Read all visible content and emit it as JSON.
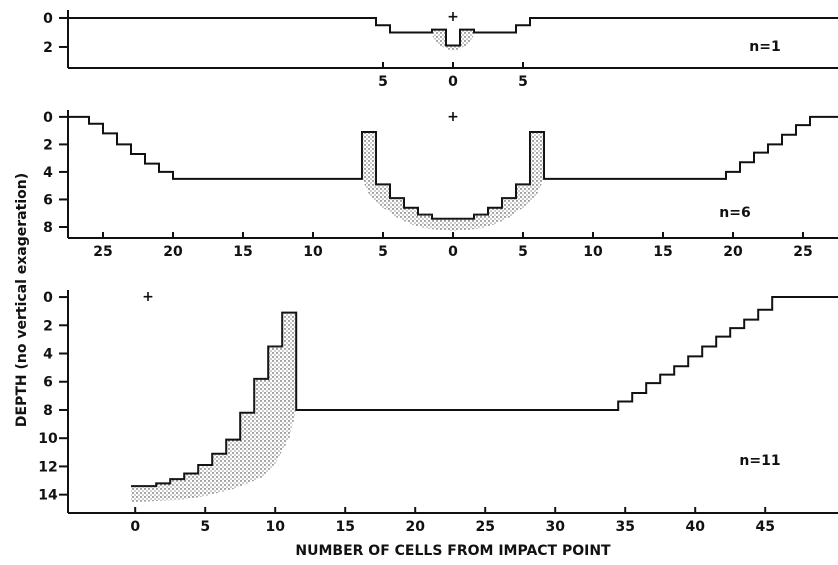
{
  "ylabel": "DEPTH (no vertical exageration)",
  "xlabel": "NUMBER OF CELLS FROM IMPACT POINT",
  "chart_data": [
    {
      "type": "line",
      "xlim": [
        -27.5,
        27.5
      ],
      "ylim": [
        3.45,
        -0.55
      ],
      "yticks": [
        0,
        2
      ],
      "xticks": [
        {
          "value": -5,
          "label": "5"
        },
        0,
        5
      ],
      "annotations": [
        "+",
        "n=1"
      ],
      "series": [
        {
          "color": "#111111",
          "x": [
            -27.5,
            -5.5,
            -5.5,
            -4.5,
            -4.5,
            -1.5,
            -1.5,
            -0.5,
            -0.5,
            0.5,
            0.5,
            1.5,
            1.5,
            4.5,
            4.5,
            5.5,
            5.5,
            27.5
          ],
          "values": [
            0,
            0,
            0.5,
            0.5,
            1,
            1,
            0.8,
            0.8,
            1.9,
            1.9,
            0.8,
            0.8,
            1,
            1,
            0.5,
            0.5,
            0,
            0
          ]
        },
        {
          "color": "#111111",
          "style": "stipple",
          "x": [
            -1.5,
            -0.5,
            -0.5,
            0.5,
            0.5,
            1.5,
            1.5,
            1,
            0,
            -1,
            -1.5
          ],
          "values": [
            0.8,
            0.8,
            1.9,
            1.9,
            0.8,
            0.8,
            1.2,
            1.9,
            2.3,
            1.9,
            1.2
          ]
        }
      ]
    },
    {
      "type": "line",
      "xlim": [
        -27.5,
        27.5
      ],
      "ylim": [
        8.8,
        -0.5
      ],
      "yticks": [
        0,
        2,
        4,
        6,
        8
      ],
      "xticks": [
        {
          "value": -25,
          "label": "25"
        },
        {
          "value": -20,
          "label": "20"
        },
        {
          "value": -15,
          "label": "15"
        },
        {
          "value": -10,
          "label": "10"
        },
        {
          "value": -5,
          "label": "5"
        },
        0,
        5,
        10,
        15,
        20,
        25
      ],
      "annotations": [
        "+",
        "n=6"
      ],
      "series": [
        {
          "color": "#111111",
          "x": [
            -27.5,
            -26,
            -26,
            -25,
            -25,
            -24,
            -24,
            -23,
            -23,
            -22,
            -22,
            -21,
            -21,
            -20,
            -20,
            -6.5,
            -6.5,
            -5.5,
            -5.5,
            -4.5,
            -4.5,
            -3.5,
            -3.5,
            -2.5,
            -2.5,
            -1.5,
            -1.5,
            1.5,
            1.5,
            2.5,
            2.5,
            3.5,
            3.5,
            4.5,
            4.5,
            5.5,
            5.5,
            6.5,
            6.5,
            19.5,
            19.5,
            20.5,
            20.5,
            21.5,
            21.5,
            22.5,
            22.5,
            23.5,
            23.5,
            24.5,
            24.5,
            25.5,
            25.5,
            27.5
          ],
          "values": [
            0,
            0,
            0.5,
            0.5,
            1.2,
            1.2,
            2,
            2,
            2.7,
            2.7,
            3.4,
            3.4,
            4,
            4,
            4.5,
            4.5,
            1.1,
            1.1,
            4.9,
            4.9,
            5.9,
            5.9,
            6.6,
            6.6,
            7.1,
            7.1,
            7.4,
            7.4,
            7.1,
            7.1,
            6.6,
            6.6,
            5.9,
            5.9,
            4.9,
            4.9,
            1.1,
            1.1,
            4.5,
            4.5,
            4,
            4,
            3.3,
            3.3,
            2.6,
            2.6,
            2,
            2,
            1.3,
            1.3,
            0.6,
            0.6,
            0,
            0
          ]
        },
        {
          "color": "#111111",
          "style": "stipple",
          "x": [
            -6.5,
            -5.5,
            -5.5,
            -4.5,
            -4.5,
            -3.5,
            -3.5,
            -2.5,
            -2.5,
            -1.5,
            -1.5,
            1.5,
            1.5,
            2.5,
            2.5,
            3.5,
            3.5,
            4.5,
            4.5,
            5.5,
            5.5,
            6.5,
            6.5,
            6,
            5,
            4,
            3,
            2,
            0,
            -2,
            -3,
            -4,
            -5,
            -6,
            -6.5
          ],
          "values": [
            1.1,
            1.1,
            4.9,
            4.9,
            5.9,
            5.9,
            6.6,
            6.6,
            7.1,
            7.1,
            7.4,
            7.4,
            7.1,
            7.1,
            6.6,
            6.6,
            5.9,
            5.9,
            4.9,
            4.9,
            1.1,
            1.1,
            4.5,
            5.6,
            6.6,
            7.3,
            7.8,
            8.1,
            8.3,
            8.1,
            7.8,
            7.3,
            6.6,
            5.6,
            4.5
          ]
        }
      ]
    },
    {
      "type": "line",
      "xlim": [
        -4.8,
        50.2
      ],
      "ylim": [
        15.3,
        -0.5
      ],
      "yticks": [
        0,
        2,
        4,
        6,
        8,
        10,
        12,
        14
      ],
      "xticks": [
        0,
        5,
        10,
        15,
        20,
        25,
        30,
        35,
        40,
        45
      ],
      "annotations": [
        "+",
        "n=11"
      ],
      "series": [
        {
          "color": "#111111",
          "x": [
            -0.3,
            1.5,
            1.5,
            2.5,
            2.5,
            3.5,
            3.5,
            4.5,
            4.5,
            5.5,
            5.5,
            6.5,
            6.5,
            7.5,
            7.5,
            8.5,
            8.5,
            9.5,
            9.5,
            10.5,
            10.5,
            11.5,
            11.5,
            34.5,
            34.5,
            35.5,
            35.5,
            36.5,
            36.5,
            37.5,
            37.5,
            38.5,
            38.5,
            39.5,
            39.5,
            40.5,
            40.5,
            41.5,
            41.5,
            42.5,
            42.5,
            43.5,
            43.5,
            44.5,
            44.5,
            45.5,
            45.5,
            50.2
          ],
          "values": [
            13.4,
            13.4,
            13.2,
            13.2,
            12.9,
            12.9,
            12.5,
            12.5,
            11.9,
            11.9,
            11.1,
            11.1,
            10.1,
            10.1,
            8.2,
            8.2,
            5.8,
            5.8,
            3.5,
            3.5,
            1.1,
            1.1,
            8,
            8,
            7.4,
            7.4,
            6.8,
            6.8,
            6.1,
            6.1,
            5.5,
            5.5,
            4.9,
            4.9,
            4.2,
            4.2,
            3.5,
            3.5,
            2.8,
            2.8,
            2.2,
            2.2,
            1.6,
            1.6,
            0.9,
            0.9,
            0,
            0
          ]
        },
        {
          "color": "#111111",
          "style": "stipple",
          "x": [
            -0.3,
            1.5,
            1.5,
            2.5,
            2.5,
            3.5,
            3.5,
            4.5,
            4.5,
            5.5,
            5.5,
            6.5,
            6.5,
            7.5,
            7.5,
            8.5,
            8.5,
            9.5,
            9.5,
            10.5,
            10.5,
            11.5,
            11.5,
            11,
            10,
            9,
            7,
            5,
            3,
            0,
            -0.3
          ],
          "values": [
            13.4,
            13.4,
            13.2,
            13.2,
            12.9,
            12.9,
            12.5,
            12.5,
            11.9,
            11.9,
            11.1,
            11.1,
            10.1,
            10.1,
            8.2,
            8.2,
            5.8,
            5.8,
            3.5,
            3.5,
            1.1,
            1.1,
            8,
            10,
            11.8,
            12.8,
            13.6,
            14.1,
            14.4,
            14.5,
            14.5
          ]
        }
      ]
    }
  ]
}
